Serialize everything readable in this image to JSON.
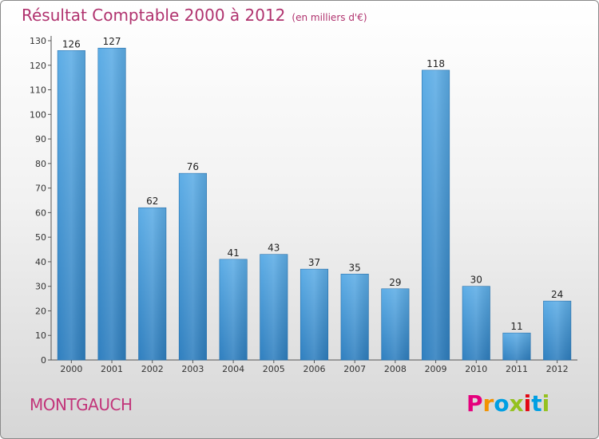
{
  "header": {
    "title": "Résultat Comptable 2000 à 2012",
    "unit": "(en milliers d'€)"
  },
  "footer": {
    "commune": "MONTGAUCH",
    "logo_letters": [
      "P",
      "r",
      "o",
      "x",
      "i",
      "t",
      "i"
    ],
    "logo_colors": [
      "#e5007d",
      "#f39200",
      "#009fe3",
      "#95c11f",
      "#e30613",
      "#009fe3",
      "#95c11f"
    ]
  },
  "colors": {
    "bar_top": "#5dade6",
    "bar_bottom": "#2f7fbf",
    "title": "#b0326e"
  },
  "chart_data": {
    "type": "bar",
    "title": "Résultat Comptable 2000 à 2012",
    "subtitle": "(en milliers d'€)",
    "categories": [
      "2000",
      "2001",
      "2002",
      "2003",
      "2004",
      "2005",
      "2006",
      "2007",
      "2008",
      "2009",
      "2010",
      "2011",
      "2012"
    ],
    "values": [
      126,
      127,
      62,
      76,
      41,
      43,
      37,
      35,
      29,
      118,
      30,
      11,
      24
    ],
    "xlabel": "",
    "ylabel": "",
    "ylim": [
      0,
      130
    ],
    "yticks": [
      0,
      10,
      20,
      30,
      40,
      50,
      60,
      70,
      80,
      90,
      100,
      110,
      120,
      130
    ],
    "grid": false
  }
}
